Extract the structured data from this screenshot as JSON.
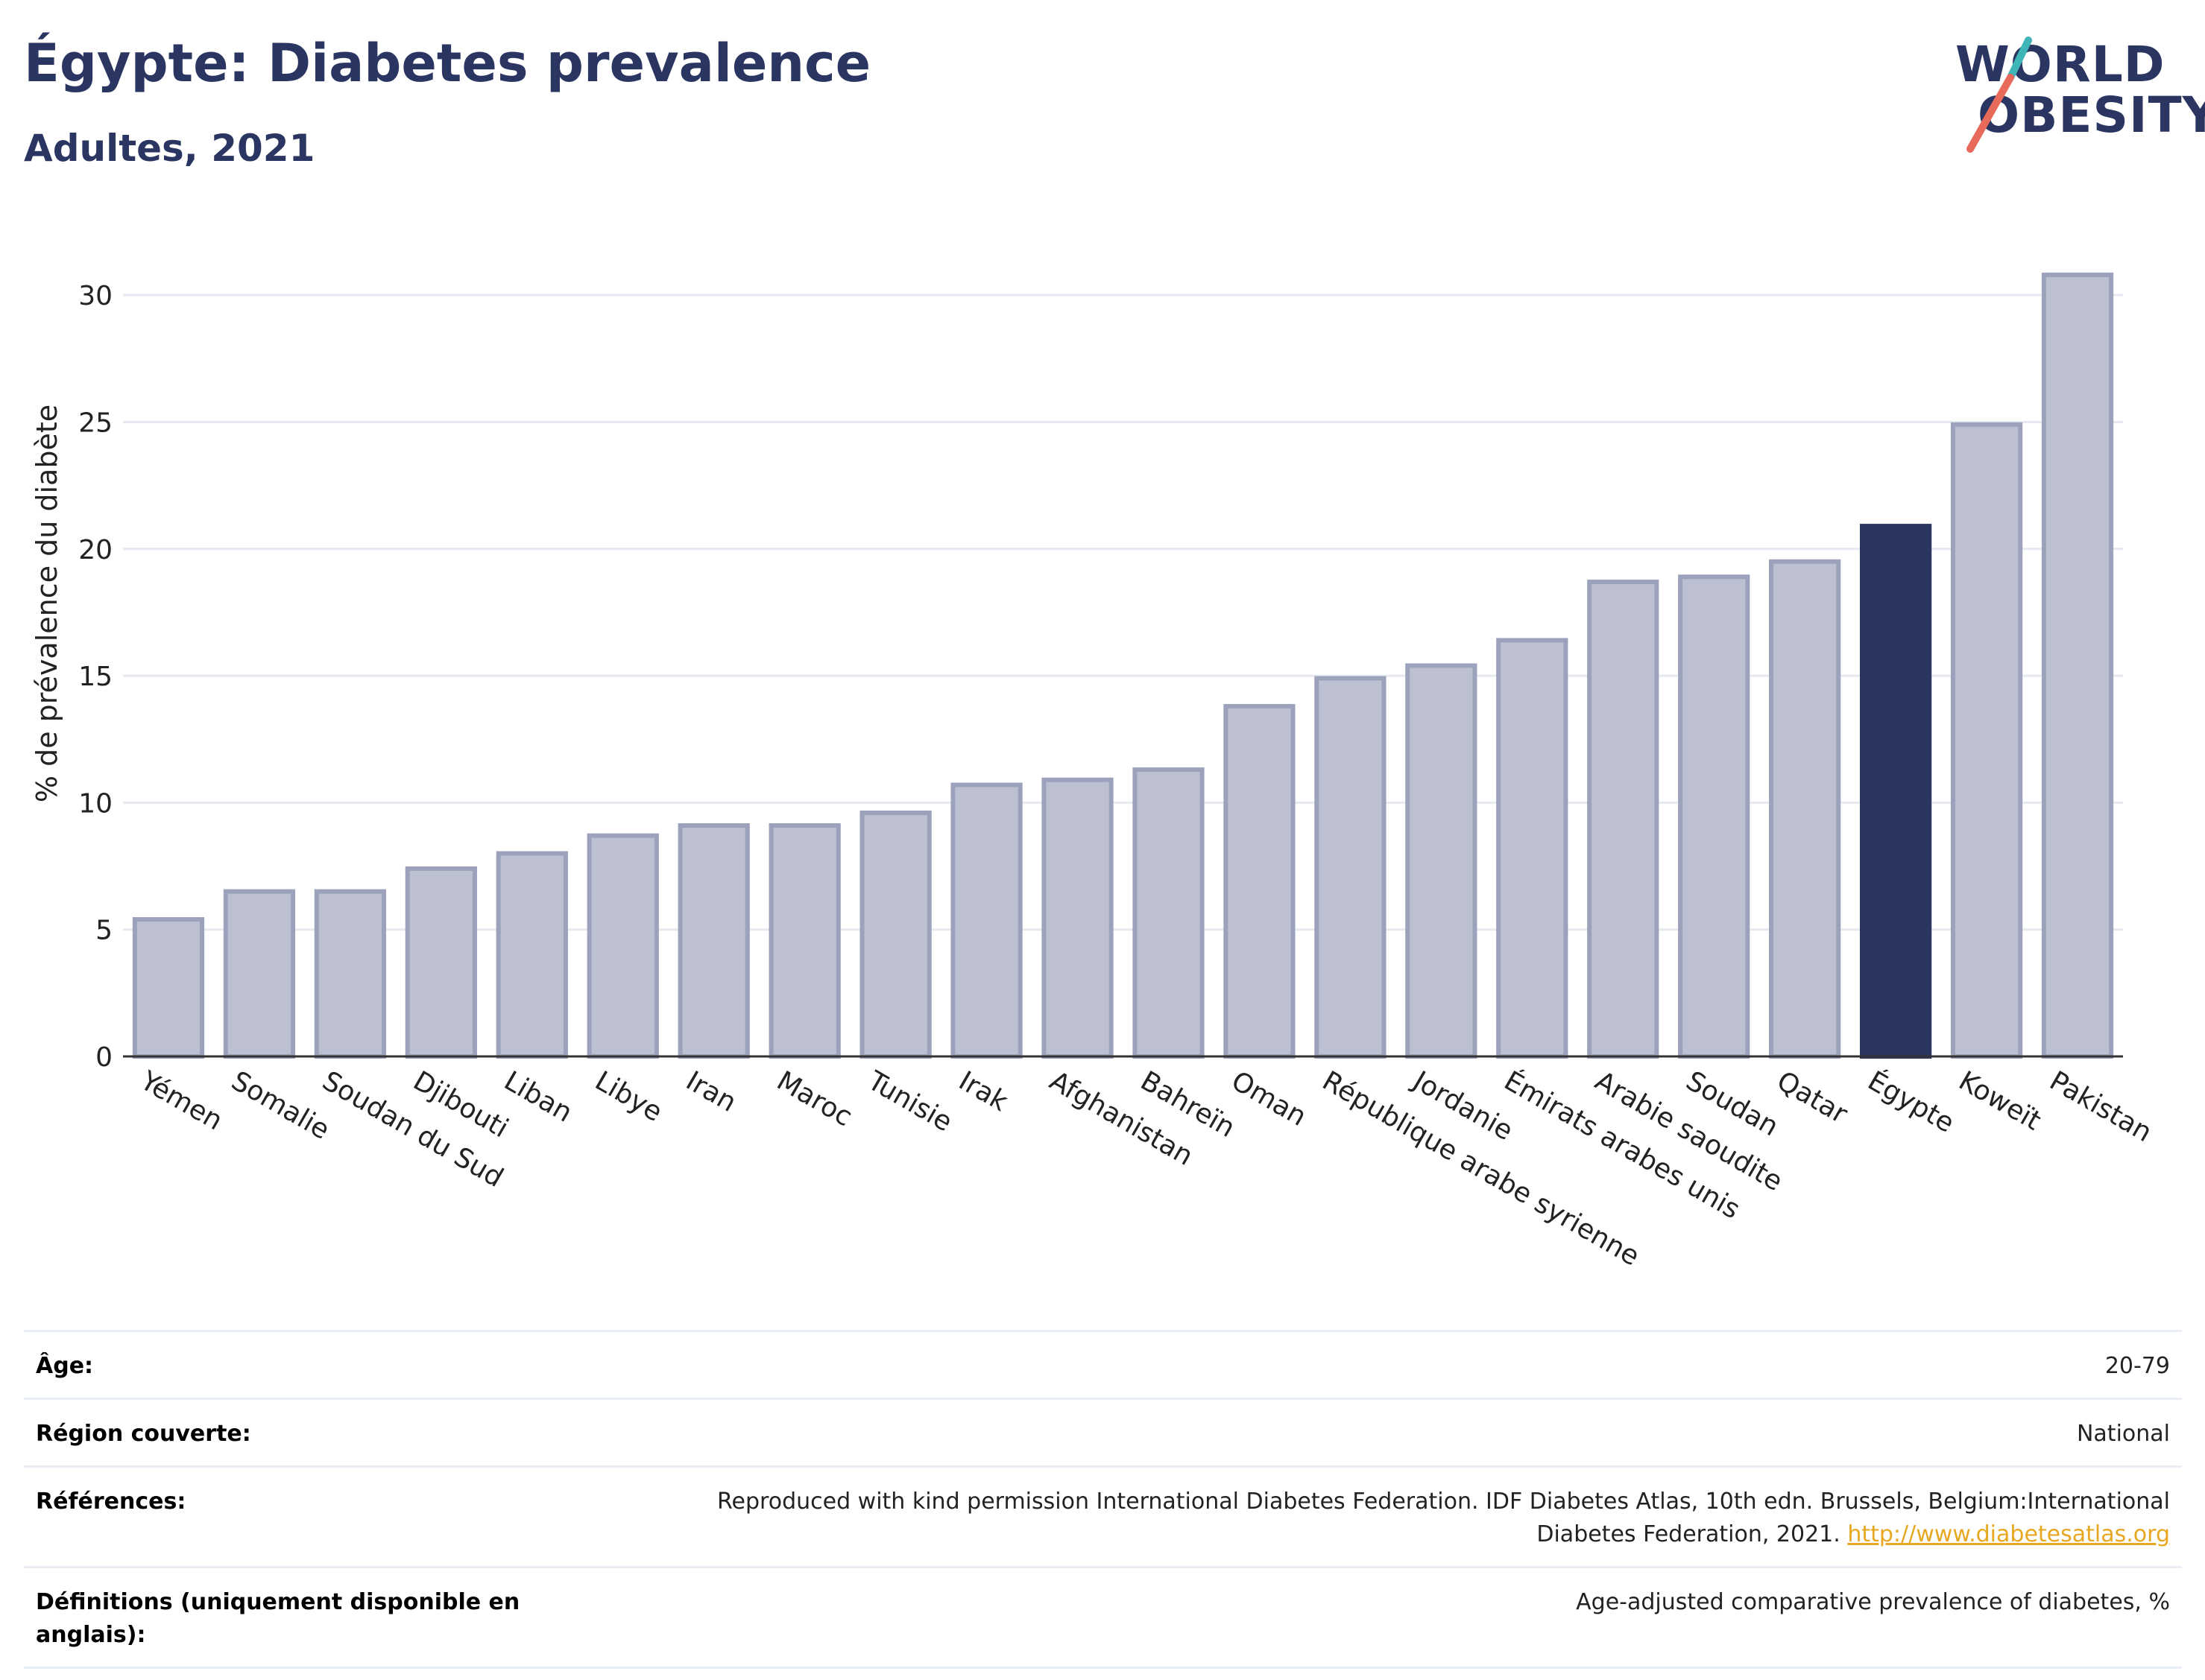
{
  "header": {
    "title": "Égypte: Diabetes prevalence",
    "subtitle": "Adultes, 2021"
  },
  "logo": {
    "line1": "WORLD",
    "line2": "OBESITY",
    "slash_colors": [
      "#3fb5b8",
      "#e86a5a"
    ]
  },
  "colors": {
    "bar": "#bcc0d0",
    "bar_border": "#9ca2bb",
    "highlight": "#2a3561",
    "grid": "#e6e9ef",
    "axis": "#333333"
  },
  "chart_data": {
    "type": "bar",
    "ylabel": "% de prévalence du diabète",
    "xlabel": "",
    "ylim": [
      0,
      32
    ],
    "yticks": [
      0,
      5,
      10,
      15,
      20,
      25,
      30
    ],
    "grid": true,
    "highlight": "Égypte",
    "categories": [
      "Yémen",
      "Somalie",
      "Soudan du Sud",
      "Djibouti",
      "Liban",
      "Libye",
      "Iran",
      "Maroc",
      "Tunisie",
      "Irak",
      "Afghanistan",
      "Bahreïn",
      "Oman",
      "République arabe syrienne",
      "Jordanie",
      "Émirats arabes unis",
      "Arabie saoudite",
      "Soudan",
      "Qatar",
      "Égypte",
      "Koweït",
      "Pakistan"
    ],
    "values": [
      5.4,
      6.5,
      6.5,
      7.4,
      8.0,
      8.7,
      9.1,
      9.1,
      9.6,
      10.7,
      10.9,
      11.3,
      13.8,
      14.9,
      15.4,
      16.4,
      18.7,
      18.9,
      19.5,
      20.9,
      24.9,
      30.8
    ]
  },
  "footer": {
    "age_label": "Âge:",
    "age_value": "20-79",
    "region_label": "Région couverte:",
    "region_value": "National",
    "refs_label": "Références:",
    "refs_text": "Reproduced with kind permission International Diabetes Federation.  IDF Diabetes Atlas, 10th edn. Brussels, Belgium:International Diabetes Federation, 2021.",
    "refs_link": "http://www.diabetesatlas.org",
    "defs_label": "Définitions (uniquement disponible en anglais):",
    "defs_value": "Age-adjusted comparative prevalence of diabetes, %"
  }
}
